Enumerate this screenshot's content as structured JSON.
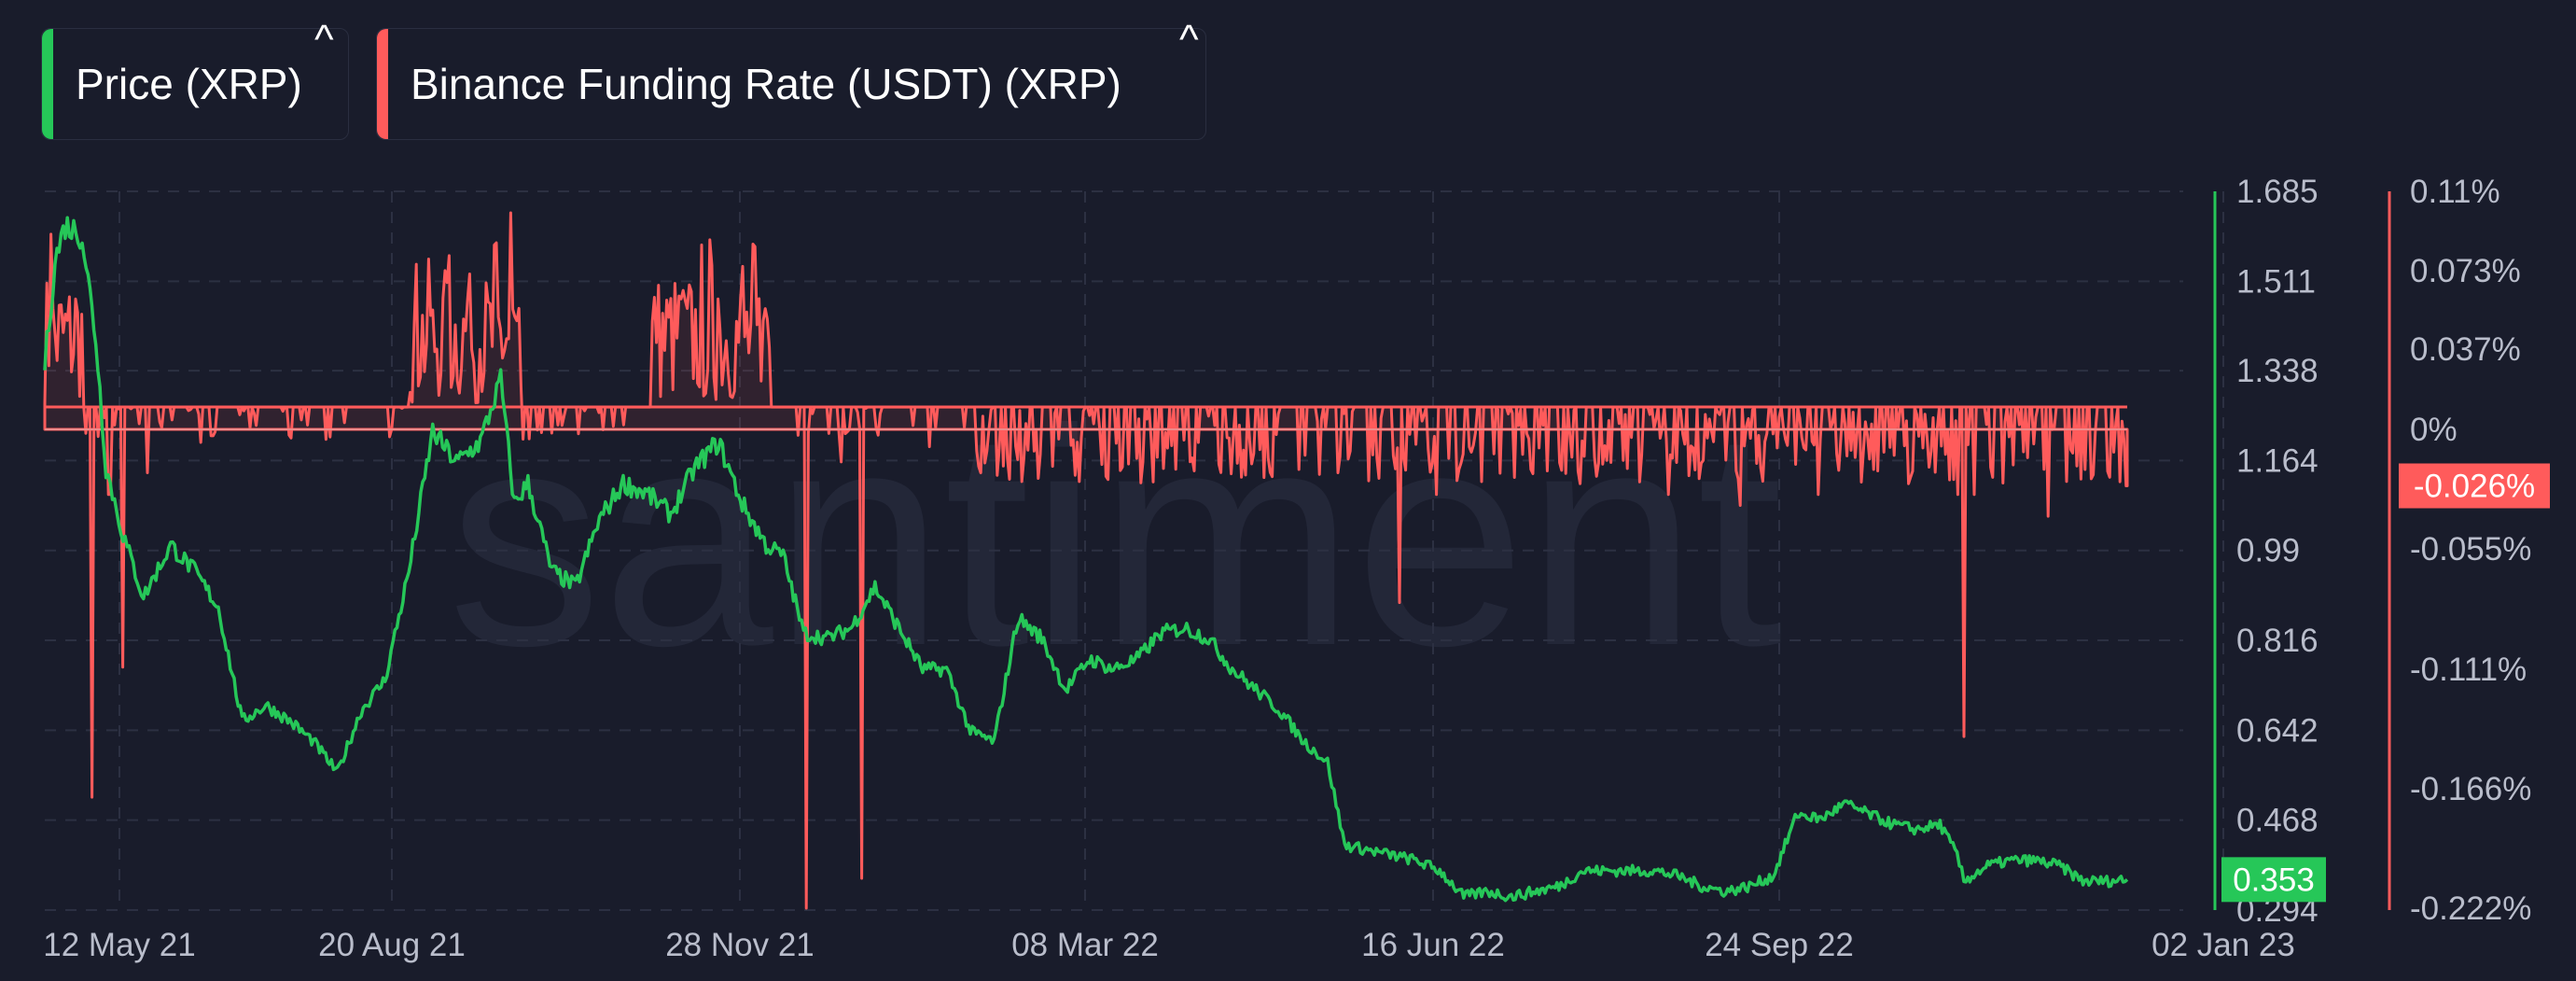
{
  "legend": {
    "price": {
      "label": "Price (XRP)",
      "color": "#26c758",
      "caret": "^"
    },
    "funding": {
      "label": "Binance Funding Rate (USDT) (XRP)",
      "color": "#ff5b5b",
      "caret": "^"
    }
  },
  "watermark": "santiment",
  "chart_data": {
    "type": "line",
    "x_ticks": [
      "12 May 21",
      "20 Aug 21",
      "28 Nov 21",
      "08 Mar 22",
      "16 Jun 22",
      "24 Sep 22",
      "02 Jan 23"
    ],
    "x_range": [
      "2021-04-25",
      "2022-12-28"
    ],
    "grid": true,
    "legend_position": "top-left",
    "y_left_axis": {
      "ticks": [
        "1.685",
        "1.511",
        "1.338",
        "1.164",
        "0.99",
        "0.816",
        "0.642",
        "0.468",
        "0.294"
      ],
      "range": [
        0.294,
        1.685
      ]
    },
    "y_right_axis": {
      "ticks": [
        "0.11%",
        "0.073%",
        "0.037%",
        "0%",
        "-0.055%",
        "-0.111%",
        "-0.166%",
        "-0.222%"
      ],
      "range": [
        -0.222,
        0.11
      ],
      "unit": "%"
    },
    "series": [
      {
        "name": "Price (XRP)",
        "color": "#26c758",
        "axis": "left",
        "current_value": "0.353",
        "points": [
          [
            "2021-04-25",
            1.35
          ],
          [
            "2021-04-28",
            1.55
          ],
          [
            "2021-05-01",
            1.62
          ],
          [
            "2021-05-06",
            1.6
          ],
          [
            "2021-05-10",
            1.4
          ],
          [
            "2021-05-13",
            1.15
          ],
          [
            "2021-05-18",
            1.02
          ],
          [
            "2021-05-24",
            0.9
          ],
          [
            "2021-06-01",
            1.0
          ],
          [
            "2021-06-08",
            0.95
          ],
          [
            "2021-06-15",
            0.88
          ],
          [
            "2021-06-22",
            0.66
          ],
          [
            "2021-06-29",
            0.69
          ],
          [
            "2021-07-06",
            0.66
          ],
          [
            "2021-07-13",
            0.62
          ],
          [
            "2021-07-20",
            0.56
          ],
          [
            "2021-07-27",
            0.68
          ],
          [
            "2021-08-03",
            0.74
          ],
          [
            "2021-08-10",
            0.95
          ],
          [
            "2021-08-17",
            1.22
          ],
          [
            "2021-08-24",
            1.16
          ],
          [
            "2021-08-31",
            1.2
          ],
          [
            "2021-09-06",
            1.32
          ],
          [
            "2021-09-10",
            1.08
          ],
          [
            "2021-09-14",
            1.12
          ],
          [
            "2021-09-21",
            0.95
          ],
          [
            "2021-09-28",
            0.92
          ],
          [
            "2021-10-05",
            1.05
          ],
          [
            "2021-10-12",
            1.12
          ],
          [
            "2021-10-19",
            1.1
          ],
          [
            "2021-10-26",
            1.06
          ],
          [
            "2021-11-02",
            1.15
          ],
          [
            "2021-11-09",
            1.2
          ],
          [
            "2021-11-16",
            1.08
          ],
          [
            "2021-11-23",
            1.0
          ],
          [
            "2021-11-28",
            0.98
          ],
          [
            "2021-12-04",
            0.83
          ],
          [
            "2021-12-11",
            0.82
          ],
          [
            "2021-12-18",
            0.84
          ],
          [
            "2021-12-25",
            0.92
          ],
          [
            "2022-01-01",
            0.84
          ],
          [
            "2022-01-08",
            0.76
          ],
          [
            "2022-01-15",
            0.76
          ],
          [
            "2022-01-22",
            0.64
          ],
          [
            "2022-01-29",
            0.62
          ],
          [
            "2022-02-05",
            0.86
          ],
          [
            "2022-02-12",
            0.82
          ],
          [
            "2022-02-19",
            0.72
          ],
          [
            "2022-02-26",
            0.78
          ],
          [
            "2022-03-05",
            0.76
          ],
          [
            "2022-03-12",
            0.78
          ],
          [
            "2022-03-19",
            0.83
          ],
          [
            "2022-03-26",
            0.84
          ],
          [
            "2022-04-02",
            0.82
          ],
          [
            "2022-04-09",
            0.76
          ],
          [
            "2022-04-16",
            0.72
          ],
          [
            "2022-04-23",
            0.68
          ],
          [
            "2022-04-30",
            0.62
          ],
          [
            "2022-05-07",
            0.58
          ],
          [
            "2022-05-12",
            0.42
          ],
          [
            "2022-05-19",
            0.41
          ],
          [
            "2022-05-26",
            0.4
          ],
          [
            "2022-06-02",
            0.39
          ],
          [
            "2022-06-09",
            0.37
          ],
          [
            "2022-06-16",
            0.32
          ],
          [
            "2022-06-23",
            0.33
          ],
          [
            "2022-06-30",
            0.32
          ],
          [
            "2022-07-07",
            0.33
          ],
          [
            "2022-07-14",
            0.34
          ],
          [
            "2022-07-21",
            0.37
          ],
          [
            "2022-07-28",
            0.37
          ],
          [
            "2022-08-04",
            0.37
          ],
          [
            "2022-08-11",
            0.37
          ],
          [
            "2022-08-18",
            0.36
          ],
          [
            "2022-08-25",
            0.34
          ],
          [
            "2022-09-01",
            0.33
          ],
          [
            "2022-09-08",
            0.34
          ],
          [
            "2022-09-15",
            0.36
          ],
          [
            "2022-09-22",
            0.48
          ],
          [
            "2022-09-29",
            0.47
          ],
          [
            "2022-10-06",
            0.5
          ],
          [
            "2022-10-13",
            0.48
          ],
          [
            "2022-10-20",
            0.46
          ],
          [
            "2022-10-27",
            0.45
          ],
          [
            "2022-11-03",
            0.46
          ],
          [
            "2022-11-08",
            0.4
          ],
          [
            "2022-11-10",
            0.35
          ],
          [
            "2022-11-17",
            0.38
          ],
          [
            "2022-11-24",
            0.39
          ],
          [
            "2022-12-01",
            0.39
          ],
          [
            "2022-12-08",
            0.38
          ],
          [
            "2022-12-15",
            0.35
          ],
          [
            "2022-12-22",
            0.35
          ],
          [
            "2022-12-28",
            0.353
          ]
        ]
      },
      {
        "name": "Binance Funding Rate (USDT) (XRP)",
        "color": "#ff5b5b",
        "axis": "right",
        "current_value": "-0.026%",
        "spikes": [
          [
            "2021-04-27",
            0.09
          ],
          [
            "2021-05-04",
            0.06
          ],
          [
            "2021-05-09",
            -0.17
          ],
          [
            "2021-05-14",
            -0.03
          ],
          [
            "2021-05-18",
            -0.11
          ],
          [
            "2021-05-25",
            -0.02
          ],
          [
            "2021-06-10",
            -0.006
          ],
          [
            "2021-08-12",
            0.076
          ],
          [
            "2021-08-17",
            0.055
          ],
          [
            "2021-08-22",
            0.08
          ],
          [
            "2021-08-27",
            0.06
          ],
          [
            "2021-09-04",
            0.085
          ],
          [
            "2021-09-09",
            0.1
          ],
          [
            "2021-09-12",
            0.02
          ],
          [
            "2021-09-23",
            0.002
          ],
          [
            "2021-10-22",
            0.04
          ],
          [
            "2021-10-29",
            0.06
          ],
          [
            "2021-11-04",
            0.085
          ],
          [
            "2021-11-09",
            0.06
          ],
          [
            "2021-11-16",
            0.075
          ],
          [
            "2021-11-22",
            0.05
          ],
          [
            "2021-12-05",
            -0.222
          ],
          [
            "2021-12-15",
            -0.015
          ],
          [
            "2021-12-21",
            -0.208
          ],
          [
            "2022-01-10",
            -0.008
          ],
          [
            "2022-02-10",
            -0.01
          ],
          [
            "2022-03-20",
            -0.018
          ],
          [
            "2022-05-10",
            -0.02
          ],
          [
            "2022-05-28",
            -0.08
          ],
          [
            "2022-06-08",
            -0.03
          ],
          [
            "2022-07-20",
            -0.025
          ],
          [
            "2022-08-15",
            -0.03
          ],
          [
            "2022-09-05",
            -0.035
          ],
          [
            "2022-09-28",
            -0.03
          ],
          [
            "2022-10-25",
            -0.025
          ],
          [
            "2022-11-08",
            -0.03
          ],
          [
            "2022-11-10",
            -0.142
          ],
          [
            "2022-11-13",
            -0.03
          ],
          [
            "2022-12-05",
            -0.04
          ],
          [
            "2022-12-28",
            -0.026
          ]
        ]
      }
    ]
  }
}
